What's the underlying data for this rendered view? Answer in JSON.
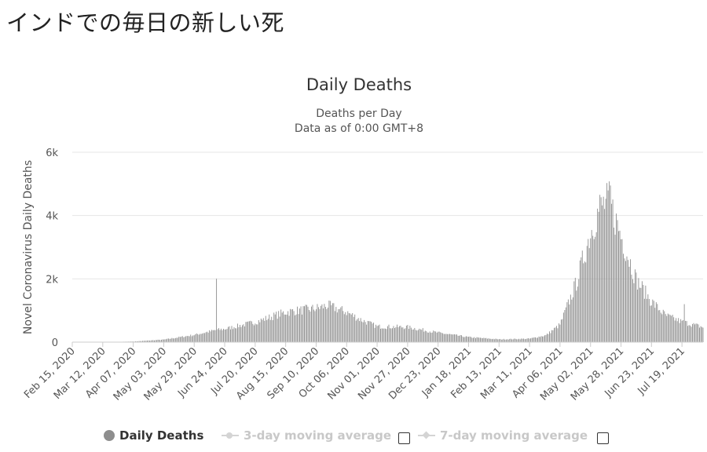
{
  "page": {
    "heading": "インドでの毎日の新しい死"
  },
  "chart_data": {
    "type": "bar",
    "title": "Daily Deaths",
    "subtitle_lines": [
      "Deaths per Day",
      "Data as of 0:00 GMT+8"
    ],
    "xlabel": "",
    "ylabel": "Novel Coronavirus Daily Deaths",
    "ylim": [
      0,
      6000
    ],
    "yticks": [
      {
        "value": 0,
        "label": "0"
      },
      {
        "value": 2000,
        "label": "2k"
      },
      {
        "value": 4000,
        "label": "4k"
      },
      {
        "value": 6000,
        "label": "6k"
      }
    ],
    "x_start": "2020-02-15",
    "x_end": "2021-08-06",
    "x_tick_labels": [
      "Feb 15, 2020",
      "Mar 12, 2020",
      "Apr 07, 2020",
      "May 03, 2020",
      "May 29, 2020",
      "Jun 24, 2020",
      "Jul 20, 2020",
      "Aug 15, 2020",
      "Sep 10, 2020",
      "Oct 06, 2020",
      "Nov 01, 2020",
      "Nov 27, 2020",
      "Dec 23, 2020",
      "Jan 18, 2021",
      "Feb 13, 2021",
      "Mar 11, 2021",
      "Apr 06, 2021",
      "May 02, 2021",
      "May 28, 2021",
      "Jun 23, 2021",
      "Jul 19, 2021"
    ],
    "x_tick_step_days": 26,
    "grid": true,
    "bar_color": "#8e8e8e",
    "legend_position": "bottom-center",
    "series": [
      {
        "name": "Daily Deaths",
        "visible": true,
        "anchors": [
          [
            "2020-02-15",
            0
          ],
          [
            "2020-03-12",
            1
          ],
          [
            "2020-04-07",
            20
          ],
          [
            "2020-05-03",
            80
          ],
          [
            "2020-05-29",
            230
          ],
          [
            "2020-06-16",
            380
          ],
          [
            "2020-06-24",
            420
          ],
          [
            "2020-07-20",
            640
          ],
          [
            "2020-08-15",
            960
          ],
          [
            "2020-09-10",
            1080
          ],
          [
            "2020-09-20",
            1170
          ],
          [
            "2020-10-06",
            960
          ],
          [
            "2020-10-18",
            720
          ],
          [
            "2020-11-01",
            500
          ],
          [
            "2020-11-27",
            480
          ],
          [
            "2020-12-23",
            300
          ],
          [
            "2021-01-18",
            160
          ],
          [
            "2021-02-13",
            90
          ],
          [
            "2021-03-11",
            110
          ],
          [
            "2021-03-25",
            220
          ],
          [
            "2021-04-06",
            560
          ],
          [
            "2021-04-20",
            1900
          ],
          [
            "2021-05-02",
            3500
          ],
          [
            "2021-05-10",
            4300
          ],
          [
            "2021-05-18",
            4500
          ],
          [
            "2021-05-28",
            3400
          ],
          [
            "2021-06-10",
            2000
          ],
          [
            "2021-06-23",
            1300
          ],
          [
            "2021-07-05",
            850
          ],
          [
            "2021-07-19",
            650
          ],
          [
            "2021-08-06",
            480
          ]
        ],
        "spikes": [
          [
            "2020-06-17",
            2003
          ],
          [
            "2021-07-21",
            1200
          ],
          [
            "2021-06-10",
            2200
          ],
          [
            "2021-05-19",
            4950
          ]
        ]
      },
      {
        "name": "3-day moving average",
        "visible": false
      },
      {
        "name": "7-day moving average",
        "visible": false
      }
    ]
  },
  "legend": {
    "items": [
      {
        "label": "Daily Deaths"
      },
      {
        "label": "3-day moving average"
      },
      {
        "label": "7-day moving average"
      }
    ]
  }
}
